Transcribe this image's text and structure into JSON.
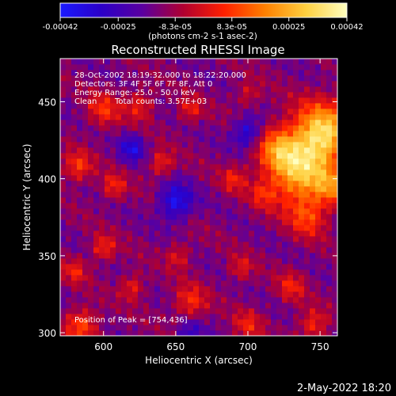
{
  "chart_data": {
    "type": "heatmap",
    "title": "Reconstructed RHESSI Image",
    "xlabel": "Heliocentric X (arcsec)",
    "ylabel": "Heliocentric Y (arcsec)",
    "xlim": [
      570,
      762
    ],
    "ylim": [
      298,
      478
    ],
    "x_ticks": [
      600,
      650,
      700,
      750
    ],
    "y_ticks": [
      300,
      350,
      400,
      450
    ],
    "colorbar": {
      "range": [
        -0.00042,
        0.00042
      ],
      "tick_values": [
        -0.00042,
        -0.00025,
        -8.3e-05,
        8.3e-05,
        0.00025,
        0.00042
      ],
      "tick_labels": [
        "-0.00042",
        "-0.00025",
        "-8.3e-05",
        "8.3e-05",
        "0.00025",
        "0.00042"
      ],
      "units_label": "(photons cm-2 s-1 asec-2)",
      "colors": [
        "#1a1aff",
        "#2b00c8",
        "#5a00a0",
        "#b00030",
        "#ff2000",
        "#ff8000",
        "#ffd040",
        "#ffffc0"
      ]
    },
    "annotations": {
      "time_range": "28-Oct-2002 18:19:32.000 to 18:22:20.000",
      "detectors": "Detectors: 3F 4F 5F 6F 7F 8F, Att 0",
      "energy_range": "Energy Range: 25.0 - 50.0 keV",
      "method": "Clean",
      "counts": "Total counts: 3.57E+03",
      "peak": "Position of Peak = [754,436]"
    },
    "peak_position": [
      754,
      436
    ],
    "sources": [
      {
        "x": 752,
        "y": 430,
        "intensity": 0.00042,
        "spread": 14
      },
      {
        "x": 735,
        "y": 405,
        "intensity": 0.00038,
        "spread": 16
      },
      {
        "x": 720,
        "y": 420,
        "intensity": 0.0002,
        "spread": 10
      },
      {
        "x": 742,
        "y": 375,
        "intensity": 0.00018,
        "spread": 9
      },
      {
        "x": 758,
        "y": 395,
        "intensity": 0.0002,
        "spread": 8
      },
      {
        "x": 600,
        "y": 445,
        "intensity": 0.00018,
        "spread": 8
      },
      {
        "x": 625,
        "y": 448,
        "intensity": 0.00016,
        "spread": 7
      },
      {
        "x": 582,
        "y": 408,
        "intensity": 0.0002,
        "spread": 7
      },
      {
        "x": 607,
        "y": 395,
        "intensity": 0.00017,
        "spread": 6
      },
      {
        "x": 640,
        "y": 410,
        "intensity": 0.00017,
        "spread": 6
      },
      {
        "x": 690,
        "y": 400,
        "intensity": 0.00015,
        "spread": 6
      },
      {
        "x": 710,
        "y": 390,
        "intensity": 0.00012,
        "spread": 6
      },
      {
        "x": 660,
        "y": 445,
        "intensity": 0.00015,
        "spread": 6
      },
      {
        "x": 700,
        "y": 455,
        "intensity": 0.00012,
        "spread": 6
      },
      {
        "x": 600,
        "y": 355,
        "intensity": 0.00018,
        "spread": 6
      },
      {
        "x": 580,
        "y": 340,
        "intensity": 0.00015,
        "spread": 6
      },
      {
        "x": 652,
        "y": 350,
        "intensity": 0.00014,
        "spread": 6
      },
      {
        "x": 695,
        "y": 342,
        "intensity": 0.00013,
        "spread": 6
      },
      {
        "x": 620,
        "y": 330,
        "intensity": 0.00016,
        "spread": 6
      },
      {
        "x": 660,
        "y": 320,
        "intensity": 0.00018,
        "spread": 8
      },
      {
        "x": 730,
        "y": 330,
        "intensity": 0.00015,
        "spread": 7
      },
      {
        "x": 585,
        "y": 305,
        "intensity": 0.00022,
        "spread": 8
      },
      {
        "x": 700,
        "y": 305,
        "intensity": 0.00015,
        "spread": 7
      },
      {
        "x": 745,
        "y": 305,
        "intensity": 0.00018,
        "spread": 7
      },
      {
        "x": 650,
        "y": 385,
        "intensity": -0.00025,
        "spread": 8
      },
      {
        "x": 620,
        "y": 420,
        "intensity": -0.0002,
        "spread": 6
      },
      {
        "x": 700,
        "y": 430,
        "intensity": -0.00022,
        "spread": 7
      },
      {
        "x": 660,
        "y": 300,
        "intensity": -0.00015,
        "spread": 6
      }
    ]
  },
  "footer": {
    "timestamp": "2-May-2022 18:20"
  }
}
